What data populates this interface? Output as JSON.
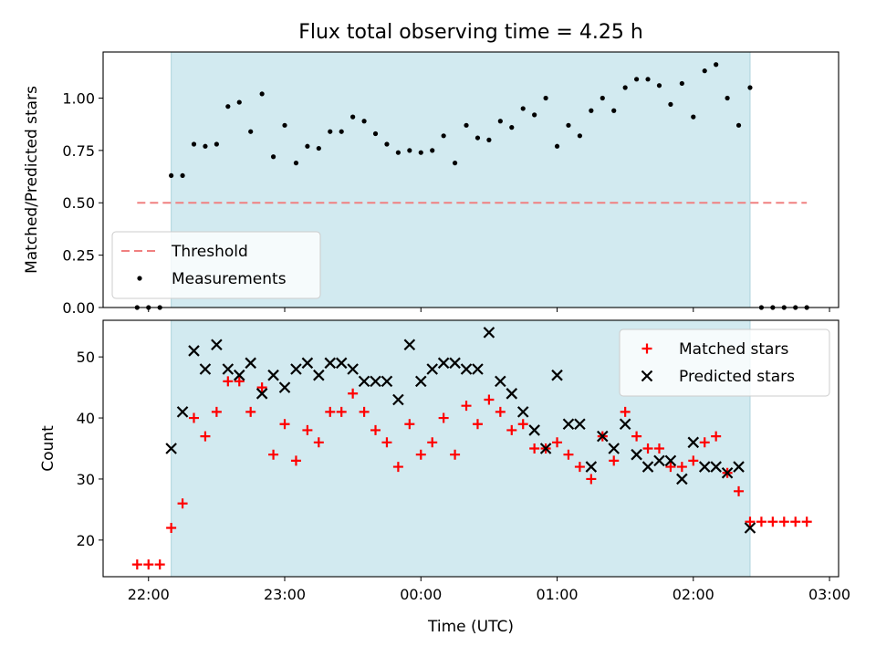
{
  "figure": {
    "title": "Flux total observing time = 4.25 h",
    "xlabel": "Time (UTC)",
    "x_ticks": [
      {
        "minutes": 0,
        "label": "22:00"
      },
      {
        "minutes": 60,
        "label": "23:00"
      },
      {
        "minutes": 120,
        "label": "00:00"
      },
      {
        "minutes": 180,
        "label": "01:00"
      },
      {
        "minutes": 240,
        "label": "02:00"
      },
      {
        "minutes": 300,
        "label": "03:00"
      }
    ],
    "x_axis_unit": "minutes after 22:00 UTC",
    "xlim": [
      -20,
      304
    ],
    "observing_window": [
      10,
      265
    ],
    "window_color": "#d2eaf0",
    "window_edge_color": "#aed4dc"
  },
  "chart_data": [
    {
      "type": "scatter",
      "ylabel": "Matched/Predicted stars",
      "ylim": [
        0.0,
        1.22
      ],
      "y_ticks": [
        {
          "value": 0.0,
          "label": "0.00"
        },
        {
          "value": 0.25,
          "label": "0.25"
        },
        {
          "value": 0.5,
          "label": "0.50"
        },
        {
          "value": 0.75,
          "label": "0.75"
        },
        {
          "value": 1.0,
          "label": "1.00"
        }
      ],
      "legend_position": "lower-left",
      "threshold": {
        "name": "Threshold",
        "value": 0.5,
        "x_range": [
          -5,
          290
        ],
        "color": "#f08080"
      },
      "series": [
        {
          "name": "Measurements",
          "color": "#000000",
          "x": [
            -5,
            0,
            5,
            10,
            15,
            20,
            25,
            30,
            35,
            40,
            45,
            50,
            55,
            60,
            65,
            70,
            75,
            80,
            85,
            90,
            95,
            100,
            105,
            110,
            115,
            120,
            125,
            130,
            135,
            140,
            145,
            150,
            155,
            160,
            165,
            170,
            175,
            180,
            185,
            190,
            195,
            200,
            205,
            210,
            215,
            220,
            225,
            230,
            235,
            240,
            245,
            250,
            255,
            260,
            265,
            270,
            275,
            280,
            285,
            290
          ],
          "y": [
            0,
            0,
            0,
            0.63,
            0.63,
            0.78,
            0.77,
            0.78,
            0.96,
            0.98,
            0.84,
            1.02,
            0.72,
            0.87,
            0.69,
            0.77,
            0.76,
            0.84,
            0.84,
            0.91,
            0.89,
            0.83,
            0.78,
            0.74,
            0.75,
            0.74,
            0.75,
            0.82,
            0.69,
            0.87,
            0.81,
            0.8,
            0.89,
            0.86,
            0.95,
            0.92,
            1.0,
            0.77,
            0.87,
            0.82,
            0.94,
            1.0,
            0.94,
            1.05,
            1.09,
            1.09,
            1.06,
            0.97,
            1.07,
            0.91,
            1.13,
            1.16,
            1.0,
            0.87,
            1.05,
            0,
            0,
            0,
            0,
            0
          ]
        }
      ]
    },
    {
      "type": "scatter",
      "ylabel": "Count",
      "ylim": [
        14,
        56
      ],
      "y_ticks": [
        {
          "value": 20,
          "label": "20"
        },
        {
          "value": 30,
          "label": "30"
        },
        {
          "value": 40,
          "label": "40"
        },
        {
          "value": 50,
          "label": "50"
        }
      ],
      "legend_position": "top-right",
      "series": [
        {
          "name": "Matched stars",
          "color": "#ff0000",
          "marker": "plus",
          "x": [
            -5,
            0,
            5,
            10,
            15,
            20,
            25,
            30,
            35,
            40,
            45,
            50,
            55,
            60,
            65,
            70,
            75,
            80,
            85,
            90,
            95,
            100,
            105,
            110,
            115,
            120,
            125,
            130,
            135,
            140,
            145,
            150,
            155,
            160,
            165,
            170,
            175,
            180,
            185,
            190,
            195,
            200,
            205,
            210,
            215,
            220,
            225,
            230,
            235,
            240,
            245,
            250,
            255,
            260,
            265,
            270,
            275,
            280,
            285,
            290
          ],
          "y": [
            16,
            16,
            16,
            22,
            26,
            40,
            37,
            41,
            46,
            46,
            41,
            45,
            34,
            39,
            33,
            38,
            36,
            41,
            41,
            44,
            41,
            38,
            36,
            32,
            39,
            34,
            36,
            40,
            34,
            42,
            39,
            43,
            41,
            38,
            39,
            35,
            35,
            36,
            34,
            32,
            30,
            37,
            33,
            41,
            37,
            35,
            35,
            32,
            32,
            33,
            36,
            37,
            31,
            28,
            23,
            23,
            23,
            23,
            23,
            23
          ]
        },
        {
          "name": "Predicted stars",
          "color": "#000000",
          "marker": "x",
          "x": [
            10,
            15,
            20,
            25,
            30,
            35,
            40,
            45,
            50,
            55,
            60,
            65,
            70,
            75,
            80,
            85,
            90,
            95,
            100,
            105,
            110,
            115,
            120,
            125,
            130,
            135,
            140,
            145,
            150,
            155,
            160,
            165,
            170,
            175,
            180,
            185,
            190,
            195,
            200,
            205,
            210,
            215,
            220,
            225,
            230,
            235,
            240,
            245,
            250,
            255,
            260,
            265
          ],
          "y": [
            35,
            41,
            51,
            48,
            52,
            48,
            47,
            49,
            44,
            47,
            45,
            48,
            49,
            47,
            49,
            49,
            48,
            46,
            46,
            46,
            43,
            52,
            46,
            48,
            49,
            49,
            48,
            48,
            54,
            46,
            44,
            41,
            38,
            35,
            47,
            39,
            39,
            32,
            37,
            35,
            39,
            34,
            32,
            33,
            33,
            30,
            36,
            32,
            32,
            31,
            32,
            22
          ]
        }
      ]
    }
  ]
}
